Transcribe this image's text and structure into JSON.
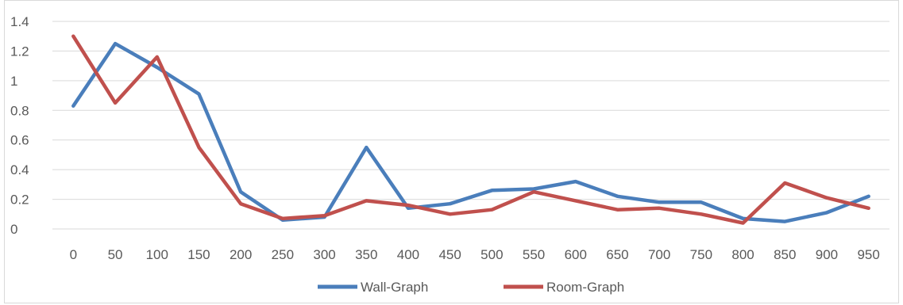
{
  "chart_data": {
    "type": "line",
    "title": "",
    "xlabel": "",
    "ylabel": "",
    "categories": [
      "0",
      "50",
      "100",
      "150",
      "200",
      "250",
      "300",
      "350",
      "400",
      "450",
      "500",
      "550",
      "600",
      "650",
      "700",
      "750",
      "800",
      "850",
      "900",
      "950"
    ],
    "ylim": [
      0,
      1.4
    ],
    "yticks": [
      "0",
      "0.2",
      "0.4",
      "0.6",
      "0.8",
      "1",
      "1.2",
      "1.4"
    ],
    "grid": true,
    "legend_position": "bottom",
    "series": [
      {
        "name": "Wall-Graph",
        "color": "#4a7ebb",
        "values": [
          0.83,
          1.25,
          1.09,
          0.91,
          0.25,
          0.06,
          0.08,
          0.55,
          0.14,
          0.17,
          0.26,
          0.27,
          0.32,
          0.22,
          0.18,
          0.18,
          0.07,
          0.05,
          0.11,
          0.22
        ]
      },
      {
        "name": "Room-Graph",
        "color": "#c0504d",
        "values": [
          1.3,
          0.85,
          1.16,
          0.55,
          0.17,
          0.07,
          0.09,
          0.19,
          0.16,
          0.1,
          0.13,
          0.25,
          0.19,
          0.13,
          0.14,
          0.1,
          0.04,
          0.31,
          0.21,
          0.14
        ]
      }
    ]
  }
}
